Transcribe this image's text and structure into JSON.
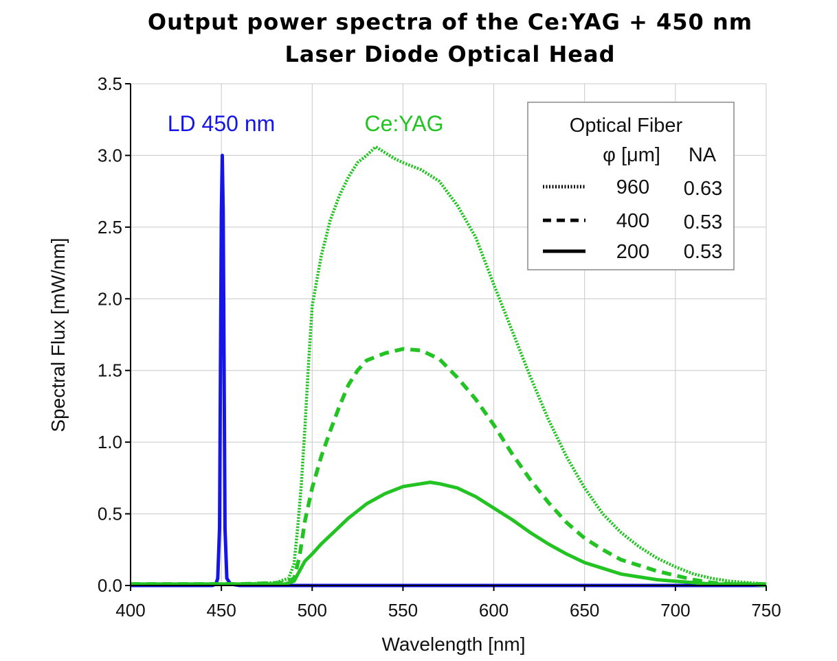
{
  "chart_data": {
    "type": "line",
    "title_line1": "Output power spectra of the Ce:YAG + 450 nm",
    "title_line2": "Laser Diode Optical Head",
    "xlabel": "Wavelength [nm]",
    "ylabel": "Spectral Flux [mW/nm]",
    "xlim": [
      400,
      750
    ],
    "ylim": [
      0,
      3.5
    ],
    "x_ticks": [
      400,
      450,
      500,
      550,
      600,
      650,
      700,
      750
    ],
    "y_ticks": [
      "0.0",
      "0.5",
      "1.0",
      "1.5",
      "2.0",
      "2.5",
      "3.0",
      "3.5"
    ],
    "grid": true,
    "annotations": {
      "ld_label": "LD 450 nm",
      "ceyag_label": "Ce:YAG"
    },
    "colors": {
      "ld": "#1515e6",
      "ceyag": "#22c322"
    },
    "legend": {
      "position": "top-right",
      "title": "Optical Fiber",
      "col_diameter": "φ [μm]",
      "col_na": "NA",
      "entries": [
        {
          "diameter": "960",
          "na": "0.63",
          "style": "dotted"
        },
        {
          "diameter": "400",
          "na": "0.53",
          "style": "dashed"
        },
        {
          "diameter": "200",
          "na": "0.53",
          "style": "solid"
        }
      ]
    },
    "series": [
      {
        "color": "ld",
        "style": "solid",
        "x": [
          400,
          440,
          445,
          447,
          448,
          449,
          449.5,
          450,
          450.5,
          451,
          451.5,
          452,
          453,
          455,
          460,
          500,
          600,
          700,
          750
        ],
        "values": [
          0,
          0,
          0,
          0.01,
          0.05,
          0.4,
          1.5,
          2.6,
          3.0,
          2.6,
          1.5,
          0.4,
          0.05,
          0.01,
          0,
          0,
          0,
          0,
          0
        ]
      },
      {
        "color": "ceyag",
        "style": "dotted",
        "x": [
          400,
          460,
          480,
          487,
          490,
          492,
          494,
          496,
          498,
          500,
          505,
          510,
          515,
          520,
          525,
          530,
          535,
          540,
          545,
          550,
          560,
          570,
          580,
          590,
          600,
          610,
          620,
          630,
          640,
          650,
          660,
          670,
          680,
          690,
          700,
          710,
          720,
          730,
          740,
          750
        ],
        "values": [
          0.01,
          0.01,
          0.02,
          0.05,
          0.15,
          0.4,
          0.7,
          1.1,
          1.55,
          1.95,
          2.3,
          2.55,
          2.72,
          2.85,
          2.95,
          3.0,
          3.06,
          3.02,
          2.98,
          2.95,
          2.9,
          2.82,
          2.65,
          2.43,
          2.1,
          1.78,
          1.46,
          1.16,
          0.9,
          0.68,
          0.5,
          0.37,
          0.27,
          0.19,
          0.13,
          0.08,
          0.05,
          0.03,
          0.02,
          0.01
        ]
      },
      {
        "color": "ceyag",
        "style": "dashed",
        "x": [
          400,
          460,
          485,
          490,
          493,
          496,
          500,
          505,
          510,
          515,
          520,
          525,
          530,
          540,
          550,
          560,
          570,
          580,
          590,
          600,
          610,
          620,
          630,
          640,
          650,
          660,
          670,
          680,
          690,
          700,
          710,
          720,
          730,
          740,
          750
        ],
        "values": [
          0.01,
          0.01,
          0.02,
          0.05,
          0.2,
          0.45,
          0.68,
          0.9,
          1.08,
          1.25,
          1.4,
          1.5,
          1.57,
          1.62,
          1.65,
          1.64,
          1.58,
          1.45,
          1.3,
          1.12,
          0.92,
          0.74,
          0.58,
          0.44,
          0.33,
          0.25,
          0.18,
          0.14,
          0.1,
          0.07,
          0.04,
          0.02,
          0.01,
          0.01,
          0.01
        ]
      },
      {
        "color": "ceyag",
        "style": "solid",
        "x": [
          400,
          460,
          485,
          490,
          493,
          496,
          500,
          505,
          510,
          520,
          530,
          540,
          550,
          560,
          565,
          570,
          580,
          590,
          600,
          610,
          620,
          630,
          640,
          650,
          660,
          670,
          680,
          690,
          700,
          710,
          720,
          730,
          740,
          750
        ],
        "values": [
          0.01,
          0.01,
          0.01,
          0.03,
          0.1,
          0.17,
          0.22,
          0.29,
          0.35,
          0.47,
          0.57,
          0.64,
          0.69,
          0.71,
          0.72,
          0.71,
          0.68,
          0.62,
          0.54,
          0.46,
          0.37,
          0.29,
          0.22,
          0.16,
          0.12,
          0.08,
          0.06,
          0.04,
          0.03,
          0.02,
          0.01,
          0.01,
          0.01,
          0.0
        ]
      }
    ]
  }
}
